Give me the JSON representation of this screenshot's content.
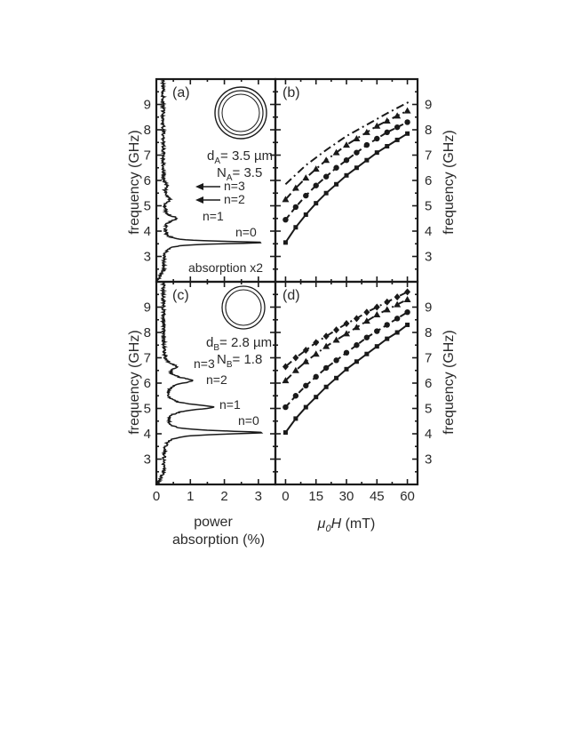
{
  "colors": {
    "ink": "#1a1a1a",
    "background": "#ffffff"
  },
  "chart_data": [
    {
      "panel": "(a)",
      "type": "line",
      "xlim": [
        0,
        3.5
      ],
      "ylim": [
        2,
        10
      ],
      "x_ticks": [],
      "y_ticks": [
        "3",
        "4",
        "5",
        "6",
        "7",
        "8",
        "9"
      ],
      "ylabel": "frequency (GHz)",
      "annotations": {
        "d_label": "d",
        "d_sub": "A",
        "d_value": "= 3.5 µm",
        "n_label": "N",
        "n_sub": "A",
        "n_value": "= 3.5",
        "scale_note": "absorption x2",
        "modes": [
          {
            "text": "n=3",
            "f": 5.8,
            "arrow": true
          },
          {
            "text": "n=2",
            "f": 5.25,
            "arrow": true
          },
          {
            "text": "n=1",
            "f": 4.55,
            "arrow": false
          },
          {
            "text": "n=0",
            "f": 3.9,
            "arrow": false
          }
        ]
      },
      "inset": "ring",
      "spectrum": {
        "baseline": 0.2,
        "peaks": [
          {
            "f": 3.55,
            "amp": 2.9,
            "w": 0.06
          },
          {
            "f": 4.5,
            "amp": 0.4,
            "w": 0.12
          },
          {
            "f": 5.25,
            "amp": 0.18,
            "w": 0.12
          },
          {
            "f": 5.8,
            "amp": 0.1,
            "w": 0.12
          }
        ]
      }
    },
    {
      "panel": "(b)",
      "type": "line",
      "xlim": [
        -5,
        65
      ],
      "ylim": [
        2,
        10
      ],
      "x_ticks": [],
      "y_ticks": [
        "3",
        "4",
        "5",
        "6",
        "7",
        "8",
        "9"
      ],
      "ylabel": "frequency (GHz)",
      "series": [
        {
          "marker": "square",
          "style": "solid",
          "x": [
            0,
            5,
            10,
            15,
            20,
            25,
            30,
            35,
            40,
            45,
            50,
            55,
            60
          ],
          "y": [
            3.55,
            4.15,
            4.65,
            5.1,
            5.5,
            5.85,
            6.2,
            6.5,
            6.8,
            7.1,
            7.35,
            7.6,
            7.85
          ]
        },
        {
          "marker": "circle",
          "style": "dash",
          "x": [
            0,
            5,
            10,
            15,
            20,
            25,
            30,
            35,
            40,
            45,
            50,
            55,
            60
          ],
          "y": [
            4.45,
            4.95,
            5.4,
            5.8,
            6.15,
            6.5,
            6.8,
            7.1,
            7.4,
            7.65,
            7.9,
            8.1,
            8.3
          ]
        },
        {
          "marker": "triangle",
          "style": "dashdot",
          "x": [
            0,
            5,
            10,
            15,
            20,
            25,
            30,
            35,
            40,
            45,
            50,
            55,
            60
          ],
          "y": [
            5.25,
            5.7,
            6.1,
            6.45,
            6.8,
            7.1,
            7.4,
            7.65,
            7.9,
            8.15,
            8.35,
            8.55,
            8.75
          ]
        },
        {
          "marker": "none",
          "style": "dashdot",
          "x": [
            0,
            10,
            20,
            30,
            40,
            50,
            62
          ],
          "y": [
            5.85,
            6.6,
            7.2,
            7.75,
            8.2,
            8.65,
            9.15
          ]
        }
      ]
    },
    {
      "panel": "(c)",
      "type": "line",
      "xlim": [
        0,
        3.5
      ],
      "ylim": [
        2,
        10
      ],
      "x_ticks": [
        "0",
        "1",
        "2",
        "3"
      ],
      "y_ticks": [
        "3",
        "4",
        "5",
        "6",
        "7",
        "8",
        "9"
      ],
      "ylabel": "frequency (GHz)",
      "xlabel_line1": "power",
      "xlabel_line2": "absorption (%)",
      "annotations": {
        "d_label": "d",
        "d_sub": "B",
        "d_value": "= 2.8 µm",
        "n_label": "N",
        "n_sub": "B",
        "n_value": "= 1.8",
        "modes": [
          {
            "text": "n=3",
            "f": 6.6
          },
          {
            "text": "n=2",
            "f": 6.2
          },
          {
            "text": "n=1",
            "f": 5.05
          },
          {
            "text": "n=0",
            "f": 4.35
          }
        ]
      },
      "inset": "ring",
      "spectrum": {
        "baseline": 0.2,
        "peaks": [
          {
            "f": 4.05,
            "amp": 2.9,
            "w": 0.08
          },
          {
            "f": 5.05,
            "amp": 1.45,
            "w": 0.13
          },
          {
            "f": 6.1,
            "amp": 0.8,
            "w": 0.15
          },
          {
            "f": 6.65,
            "amp": 0.35,
            "w": 0.12
          }
        ]
      }
    },
    {
      "panel": "(d)",
      "type": "line",
      "xlim": [
        -5,
        65
      ],
      "ylim": [
        2,
        10
      ],
      "x_ticks": [
        "0",
        "15",
        "30",
        "45",
        "60"
      ],
      "y_ticks": [
        "3",
        "4",
        "5",
        "6",
        "7",
        "8",
        "9"
      ],
      "ylabel": "frequency (GHz)",
      "xlabel": "μ₀H (mT)",
      "series": [
        {
          "marker": "square",
          "style": "solid",
          "x": [
            0,
            5,
            10,
            15,
            20,
            25,
            30,
            35,
            40,
            45,
            50,
            55,
            60
          ],
          "y": [
            4.05,
            4.6,
            5.05,
            5.45,
            5.85,
            6.2,
            6.55,
            6.85,
            7.15,
            7.45,
            7.75,
            8.0,
            8.3
          ]
        },
        {
          "marker": "circle",
          "style": "dash",
          "x": [
            0,
            5,
            10,
            15,
            20,
            25,
            30,
            35,
            40,
            45,
            50,
            55,
            60
          ],
          "y": [
            5.05,
            5.5,
            5.9,
            6.25,
            6.6,
            6.9,
            7.2,
            7.5,
            7.8,
            8.05,
            8.3,
            8.55,
            8.8
          ]
        },
        {
          "marker": "triangle",
          "style": "dashdot",
          "x": [
            0,
            5,
            10,
            15,
            20,
            25,
            30,
            35,
            40,
            45,
            50,
            55,
            60
          ],
          "y": [
            6.1,
            6.5,
            6.85,
            7.15,
            7.45,
            7.7,
            7.95,
            8.2,
            8.45,
            8.7,
            8.9,
            9.1,
            9.3
          ]
        },
        {
          "marker": "diamond",
          "style": "dashdot",
          "x": [
            0,
            5,
            10,
            15,
            20,
            25,
            30,
            35,
            40,
            45,
            50,
            55,
            60
          ],
          "y": [
            6.65,
            7.0,
            7.3,
            7.6,
            7.85,
            8.1,
            8.35,
            8.55,
            8.8,
            9.0,
            9.2,
            9.4,
            9.6
          ]
        }
      ]
    }
  ]
}
